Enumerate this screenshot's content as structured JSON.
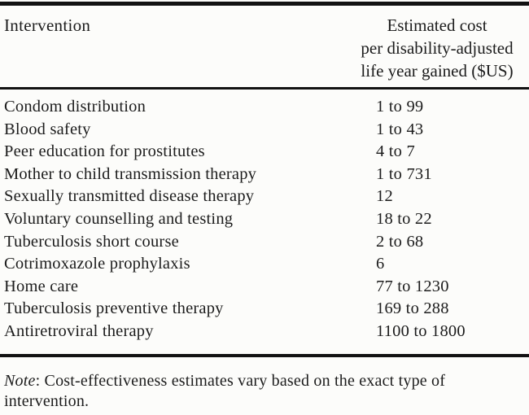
{
  "table": {
    "col1_header": "Intervention",
    "col2_header_lines": {
      "line1": "Estimated cost",
      "line2": "per disability-adjusted",
      "line3": "life year gained ($US)"
    },
    "rows": [
      {
        "intervention": "Condom distribution",
        "cost": "1 to 99"
      },
      {
        "intervention": "Blood safety",
        "cost": "1 to 43"
      },
      {
        "intervention": "Peer education for prostitutes",
        "cost": "4 to 7"
      },
      {
        "intervention": "Mother to child transmission therapy",
        "cost": "1 to 731"
      },
      {
        "intervention": "Sexually transmitted disease therapy",
        "cost": "12"
      },
      {
        "intervention": "Voluntary counselling and testing",
        "cost": "18 to 22"
      },
      {
        "intervention": "Tuberculosis short course",
        "cost": "2 to 68"
      },
      {
        "intervention": "Cotrimoxazole prophylaxis",
        "cost": "6"
      },
      {
        "intervention": "Home care",
        "cost": "77 to 1230"
      },
      {
        "intervention": "Tuberculosis preventive therapy",
        "cost": "169 to 288"
      },
      {
        "intervention": "Antiretroviral therapy",
        "cost": "1100 to 1800"
      }
    ]
  },
  "note": {
    "label": "Note",
    "text": ": Cost-effectiveness estimates vary based on the exact type of intervention."
  },
  "colors": {
    "text": "#1c1c1c",
    "rule": "#121212",
    "background": "#fcfcfa"
  }
}
